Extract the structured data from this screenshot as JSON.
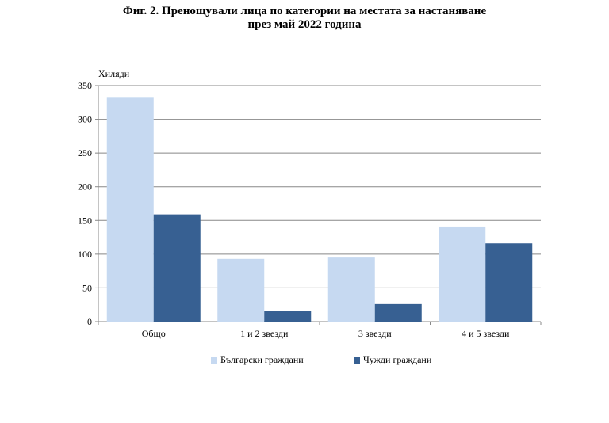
{
  "title": {
    "line1": "Фиг. 2. Пренощували лица по категории на местата за настаняване",
    "line2": "през май 2022 година"
  },
  "chart_data": {
    "type": "bar",
    "ylabel": "Хиляди",
    "ylim": [
      0,
      350
    ],
    "yticks": [
      0,
      50,
      100,
      150,
      200,
      250,
      300,
      350
    ],
    "categories": [
      "Общо",
      "1 и 2 звезди",
      "3 звезди",
      "4 и 5 звезди"
    ],
    "series": [
      {
        "name": "Български граждани",
        "color": "#c6d9f1",
        "values": [
          332,
          93,
          95,
          141
        ]
      },
      {
        "name": "Чужди граждани",
        "color": "#376092",
        "values": [
          159,
          16,
          26,
          116
        ]
      }
    ],
    "grid": true,
    "legend": "bottom"
  }
}
